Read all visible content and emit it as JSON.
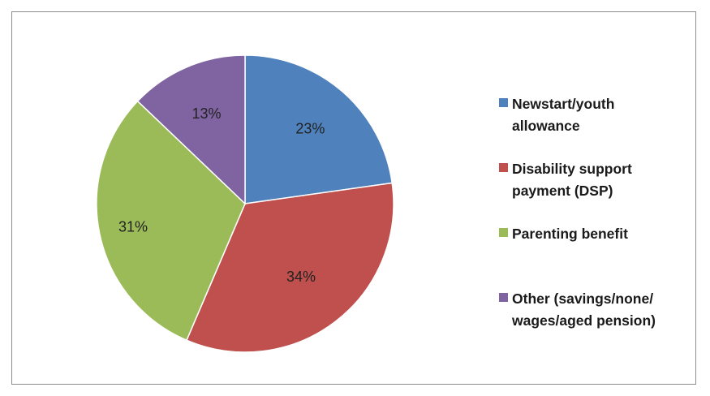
{
  "chart_data": {
    "type": "pie",
    "title": "",
    "slices": [
      {
        "label": "Newstart/youth allowance",
        "value": 23,
        "display": "23%",
        "color": "#4f81bd"
      },
      {
        "label": "Disability support payment (DSP)",
        "value": 34,
        "display": "34%",
        "color": "#c0504d"
      },
      {
        "label": "Parenting benefit",
        "value": 31,
        "display": "31%",
        "color": "#9bbb59"
      },
      {
        "label": "Other (savings/none/ wages/aged pension)",
        "value": 13,
        "display": "13%",
        "color": "#8064a2"
      }
    ],
    "legend_position": "right",
    "legend": [
      {
        "text": "Newstart/youth\nallowance",
        "color": "#4f81bd"
      },
      {
        "text": "Disability support\npayment (DSP)",
        "color": "#c0504d"
      },
      {
        "text": "Parenting benefit",
        "color": "#9bbb59"
      },
      {
        "text": "Other (savings/none/\nwages/aged pension)",
        "color": "#8064a2"
      }
    ]
  }
}
